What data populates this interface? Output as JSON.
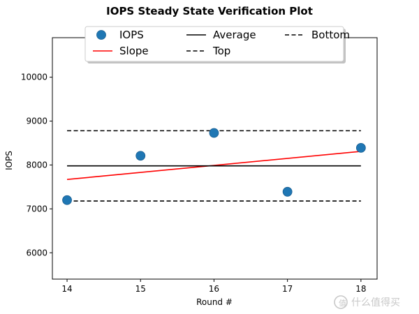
{
  "chart_data": {
    "type": "scatter",
    "title": "IOPS Steady State Verification Plot",
    "xlabel": "Round #",
    "ylabel": "IOPS",
    "xlim": [
      13.8,
      18.22
    ],
    "ylim": [
      5400,
      10900
    ],
    "xticks": [
      "14",
      "15",
      "16",
      "17",
      "18"
    ],
    "yticks": [
      "6000",
      "7000",
      "8000",
      "9000",
      "10000"
    ],
    "grid": false,
    "legend_position": "top-center",
    "series": [
      {
        "name": "IOPS",
        "kind": "scatter",
        "color": "#1f77b4",
        "x": [
          14,
          15,
          16,
          17,
          18
        ],
        "y": [
          7200,
          8210,
          8730,
          7390,
          8390
        ]
      },
      {
        "name": "Slope",
        "kind": "line",
        "color": "#ff0000",
        "x": [
          14,
          18
        ],
        "y": [
          7670,
          8310
        ]
      },
      {
        "name": "Average",
        "kind": "line",
        "color": "#000000",
        "x": [
          14,
          18
        ],
        "y": [
          7980,
          7980
        ]
      },
      {
        "name": "Top",
        "kind": "dashed-line",
        "color": "#000000",
        "x": [
          14,
          18
        ],
        "y": [
          8780,
          8780
        ]
      },
      {
        "name": "Bottom",
        "kind": "dashed-line",
        "color": "#000000",
        "x": [
          14,
          18
        ],
        "y": [
          7180,
          7180
        ]
      }
    ]
  },
  "watermark": {
    "text": "什么值得买",
    "icon": "smzdm-logo-icon"
  }
}
